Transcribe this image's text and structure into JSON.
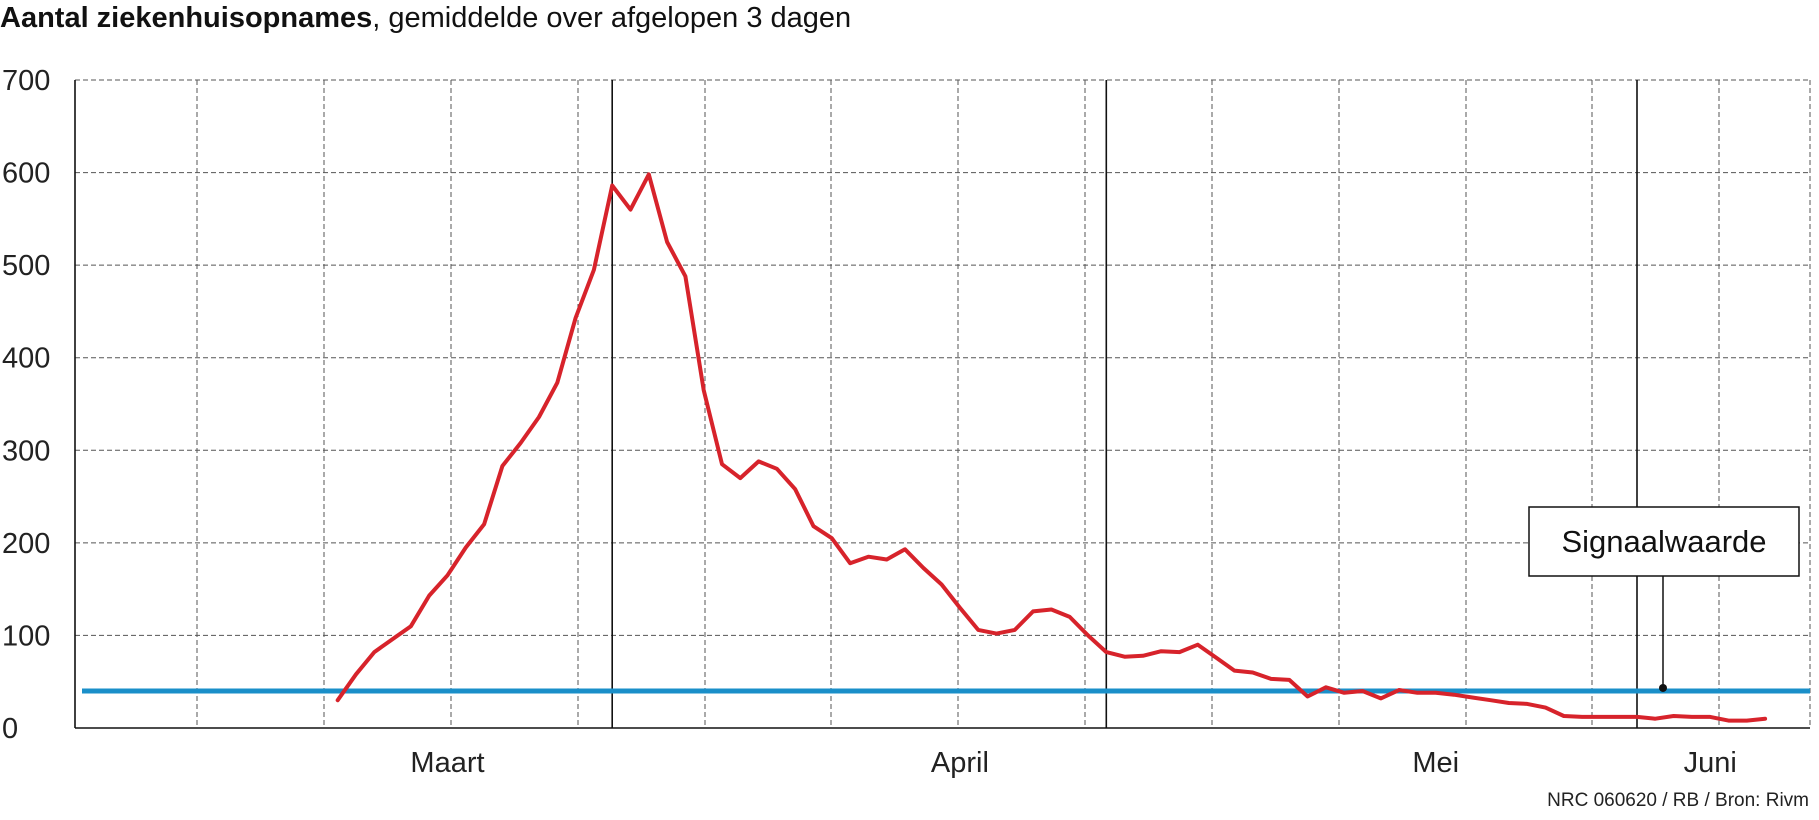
{
  "chart_data": {
    "type": "line",
    "title": "Aantal ziekenhuisopnames",
    "subtitle": ", gemiddelde over afgelopen 3 dagen",
    "source": "NRC 060620 / RB / Bron: Rivm",
    "ylim": [
      0,
      700
    ],
    "yticks": [
      "700",
      "600",
      "500",
      "400",
      "300",
      "200",
      "100",
      "0"
    ],
    "ytick_values": [
      700,
      600,
      500,
      400,
      300,
      200,
      100,
      0
    ],
    "month_labels": [
      {
        "label": "Maart",
        "day": 6
      },
      {
        "label": "April",
        "day": 34
      },
      {
        "label": "Mei",
        "day": 60
      },
      {
        "label": "Juni",
        "day": 75
      }
    ],
    "grid": true,
    "markers_day": [
      15,
      42,
      71
    ],
    "series": [
      {
        "color": "#d7232b",
        "x": [
          0,
          1,
          2,
          3,
          4,
          5,
          6,
          7,
          8,
          9,
          10,
          11,
          12,
          13,
          14,
          15,
          16,
          17,
          18,
          19,
          20,
          21,
          22,
          23,
          24,
          25,
          26,
          27,
          28,
          29,
          30,
          31,
          32,
          33,
          34,
          35,
          36,
          37,
          38,
          39,
          40,
          41,
          42,
          43,
          44,
          45,
          46,
          47,
          48,
          49,
          50,
          51,
          52,
          53,
          54,
          55,
          56,
          57,
          58,
          59,
          60,
          61,
          62,
          63,
          64,
          65,
          66,
          67,
          68,
          69,
          70,
          71,
          72,
          73,
          74,
          75,
          76,
          77,
          78
        ],
        "y": [
          30,
          58,
          82,
          96,
          110,
          143,
          165,
          195,
          220,
          283,
          308,
          336,
          373,
          443,
          495,
          586,
          560,
          598,
          525,
          488,
          365,
          285,
          270,
          288,
          280,
          258,
          218,
          205,
          178,
          185,
          182,
          193,
          173,
          155,
          130,
          106,
          102,
          106,
          126,
          128,
          120,
          100,
          82,
          77,
          78,
          83,
          82,
          90,
          76,
          62,
          60,
          53,
          52,
          34,
          44,
          38,
          40,
          32,
          41,
          38,
          38,
          36,
          33,
          30,
          27,
          26,
          22,
          13,
          12,
          12,
          12,
          12,
          10,
          13,
          12,
          12,
          8,
          8,
          10
        ]
      }
    ],
    "threshold": {
      "label": "Signaalwaarde",
      "value": 40,
      "color": "#1a8fc9"
    }
  }
}
